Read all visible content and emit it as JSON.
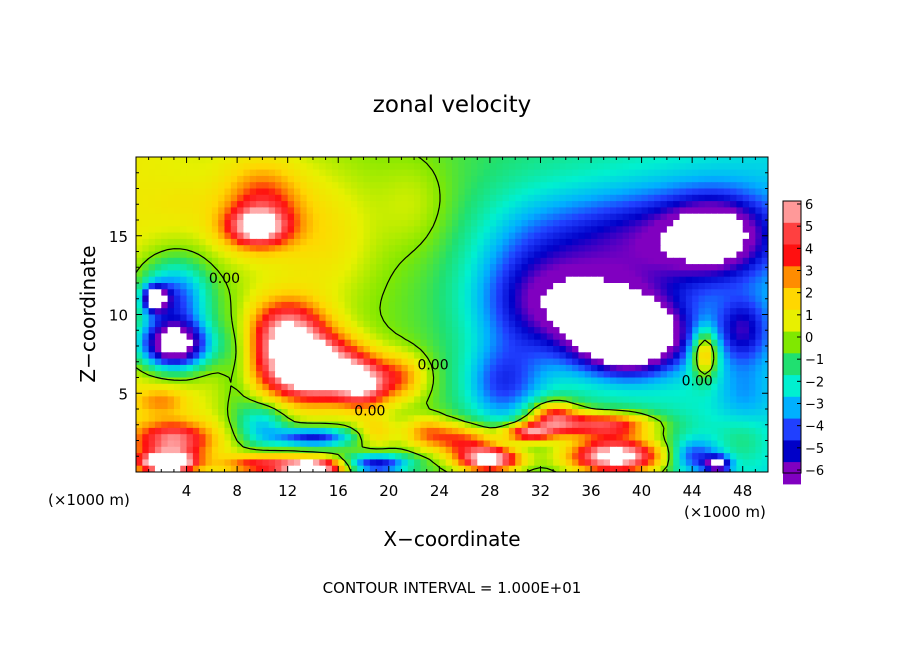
{
  "chart_data": {
    "type": "heatmap",
    "title": "zonal velocity",
    "xlabel": "X−coordinate",
    "ylabel": "Z−coordinate",
    "x_unit": "(×1000 m)",
    "x_unit_right": "(×1000 m)",
    "footer": "CONTOUR INTERVAL = 1.000E+01",
    "xlim": [
      0,
      50
    ],
    "ylim": [
      0,
      20
    ],
    "x_ticks": [
      4,
      8,
      12,
      16,
      20,
      24,
      28,
      32,
      36,
      40,
      44,
      48
    ],
    "y_ticks": [
      5,
      10,
      15
    ],
    "contour_labels": [
      {
        "text": "0.00",
        "x": 7,
        "y": 12
      },
      {
        "text": "0.00",
        "x": 18.5,
        "y": 3.6
      },
      {
        "text": "0.00",
        "x": 23.5,
        "y": 6.5
      },
      {
        "text": "0.00",
        "x": 44.4,
        "y": 5.5
      }
    ],
    "colorbar": {
      "min": -6,
      "max": 6,
      "labels": [
        "6",
        "5",
        "4",
        "3",
        "2",
        "1",
        "0",
        "−1",
        "−2",
        "−3",
        "−4",
        "−5",
        "−6"
      ],
      "colors": [
        "#ff9999",
        "#ff4040",
        "#ff1010",
        "#ff8c00",
        "#ffd700",
        "#e8f000",
        "#80e800",
        "#20e070",
        "#00f0d0",
        "#00b0ff",
        "#2040ff",
        "#0000c8",
        "#8000c0"
      ]
    },
    "blobs": [
      {
        "x": 4,
        "y": 17,
        "rx": 3.0,
        "ry": 1.5,
        "v": 0.5
      },
      {
        "x": 10,
        "y": 17,
        "rx": 3.0,
        "ry": 2.5,
        "v": 3.5
      },
      {
        "x": 9.5,
        "y": 15.5,
        "rx": 2.5,
        "ry": 1.2,
        "v": 5
      },
      {
        "x": 15,
        "y": 15,
        "rx": 4.0,
        "ry": 4.0,
        "v": 1.5
      },
      {
        "x": 22,
        "y": 17,
        "rx": 3.0,
        "ry": 3.0,
        "v": 1.0
      },
      {
        "x": 3,
        "y": 11,
        "rx": 3.0,
        "ry": 2.5,
        "v": -5
      },
      {
        "x": 1.5,
        "y": 11,
        "rx": 1.0,
        "ry": 0.8,
        "v": -6
      },
      {
        "x": 3,
        "y": 8,
        "rx": 2.8,
        "ry": 1.5,
        "v": -8
      },
      {
        "x": 8,
        "y": 7,
        "rx": 1.5,
        "ry": 3.5,
        "v": -1.5
      },
      {
        "x": 12,
        "y": 9,
        "rx": 3.0,
        "ry": 2.0,
        "v": 5.5
      },
      {
        "x": 14,
        "y": 6.5,
        "rx": 4.0,
        "ry": 2.0,
        "v": 9
      },
      {
        "x": 18,
        "y": 5.5,
        "rx": 2.0,
        "ry": 1.5,
        "v": 5
      },
      {
        "x": 21,
        "y": 6,
        "rx": 2.0,
        "ry": 1.5,
        "v": 3
      },
      {
        "x": 2,
        "y": 4.5,
        "rx": 2.0,
        "ry": 0.8,
        "v": 2
      },
      {
        "x": 3,
        "y": 2,
        "rx": 3.0,
        "ry": 1.2,
        "v": 5
      },
      {
        "x": 2.5,
        "y": 0.6,
        "rx": 2.0,
        "ry": 0.6,
        "v": 9
      },
      {
        "x": 10,
        "y": 3,
        "rx": 2.0,
        "ry": 1.5,
        "v": -3
      },
      {
        "x": 14,
        "y": 2.2,
        "rx": 3.0,
        "ry": 0.6,
        "v": -5
      },
      {
        "x": 10,
        "y": 0.5,
        "rx": 3.0,
        "ry": 0.6,
        "v": 4
      },
      {
        "x": 14,
        "y": 0.3,
        "rx": 2.5,
        "ry": 0.5,
        "v": 8
      },
      {
        "x": 19,
        "y": 0.5,
        "rx": 2.5,
        "ry": 0.6,
        "v": -5
      },
      {
        "x": 19,
        "y": 2.5,
        "rx": 1.5,
        "ry": 1.0,
        "v": 2
      },
      {
        "x": 23,
        "y": 2.5,
        "rx": 2.0,
        "ry": 1.0,
        "v": 3
      },
      {
        "x": 26,
        "y": 2,
        "rx": 2.5,
        "ry": 1.0,
        "v": 4
      },
      {
        "x": 28,
        "y": 0.8,
        "rx": 2.5,
        "ry": 0.8,
        "v": 8
      },
      {
        "x": 31,
        "y": 2.5,
        "rx": 2.0,
        "ry": 0.6,
        "v": 6
      },
      {
        "x": 33,
        "y": 3.5,
        "rx": 2.0,
        "ry": 1.0,
        "v": 5
      },
      {
        "x": 37,
        "y": 3,
        "rx": 4.0,
        "ry": 0.8,
        "v": 6
      },
      {
        "x": 38,
        "y": 1,
        "rx": 4.0,
        "ry": 1.2,
        "v": 9
      },
      {
        "x": 44,
        "y": 1,
        "rx": 2.0,
        "ry": 1.0,
        "v": -3
      },
      {
        "x": 46,
        "y": 0.5,
        "rx": 1.0,
        "ry": 0.5,
        "v": -5
      },
      {
        "x": 48,
        "y": 2,
        "rx": 2.0,
        "ry": 1.5,
        "v": 1
      },
      {
        "x": 31,
        "y": 12,
        "rx": 5.0,
        "ry": 5.0,
        "v": -2.2
      },
      {
        "x": 40,
        "y": 15,
        "rx": 8.0,
        "ry": 3.0,
        "v": -3.5
      },
      {
        "x": 46,
        "y": 15,
        "rx": 4.0,
        "ry": 2.5,
        "v": -4.5
      },
      {
        "x": 36,
        "y": 10.5,
        "rx": 7.0,
        "ry": 3.0,
        "v": -4.5
      },
      {
        "x": 29,
        "y": 5.5,
        "rx": 3.0,
        "ry": 2.5,
        "v": -3
      },
      {
        "x": 39,
        "y": 8.5,
        "rx": 3.8,
        "ry": 2.0,
        "v": -9
      },
      {
        "x": 45,
        "y": 7.5,
        "rx": 1.0,
        "ry": 1.5,
        "v": 5
      },
      {
        "x": 48,
        "y": 9,
        "rx": 2.0,
        "ry": 2.0,
        "v": -3
      },
      {
        "x": 48,
        "y": 5,
        "rx": 2.0,
        "ry": 2.0,
        "v": -1
      }
    ]
  }
}
